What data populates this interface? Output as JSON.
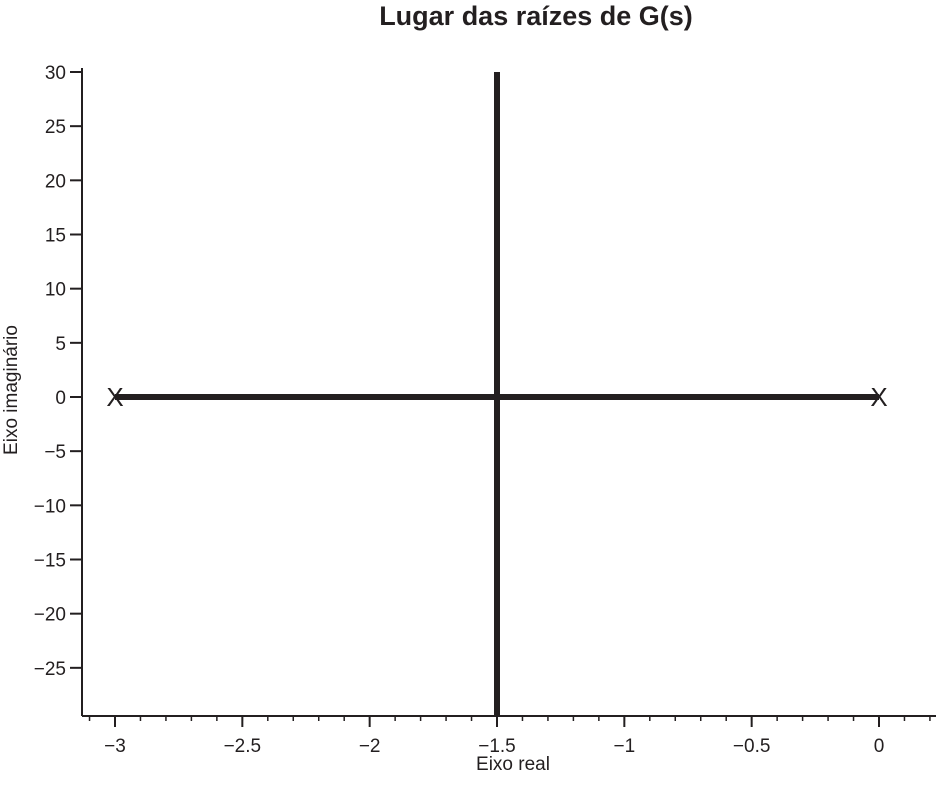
{
  "chart_data": {
    "type": "line",
    "title": "Lugar das raízes de G(s)",
    "xlabel": "Eixo real",
    "ylabel": "Eixo imaginário",
    "xlim": [
      -3.13,
      0.22
    ],
    "ylim": [
      -29.5,
      30.5
    ],
    "x_ticks": [
      {
        "value": -3,
        "label": "−3"
      },
      {
        "value": -2.5,
        "label": "−2.5"
      },
      {
        "value": -2,
        "label": "−2"
      },
      {
        "value": -1.5,
        "label": "−1.5"
      },
      {
        "value": -1,
        "label": "−1"
      },
      {
        "value": -0.5,
        "label": "−0.5"
      },
      {
        "value": 0,
        "label": "0"
      }
    ],
    "y_ticks": [
      {
        "value": 30,
        "label": "30"
      },
      {
        "value": 25,
        "label": "25"
      },
      {
        "value": 20,
        "label": "20"
      },
      {
        "value": 15,
        "label": "15"
      },
      {
        "value": 10,
        "label": "10"
      },
      {
        "value": 5,
        "label": "5"
      },
      {
        "value": 0,
        "label": "0"
      },
      {
        "value": -5,
        "label": "−5"
      },
      {
        "value": -10,
        "label": "−10"
      },
      {
        "value": -15,
        "label": "−15"
      },
      {
        "value": -20,
        "label": "−20"
      },
      {
        "value": -25,
        "label": "−25"
      }
    ],
    "series": [
      {
        "x": [
          -3,
          0
        ],
        "y": [
          0,
          0
        ]
      },
      {
        "x": [
          -1.5,
          -1.5
        ],
        "y": [
          30,
          -29.5
        ]
      }
    ],
    "poles": [
      {
        "x": -3,
        "y": 0,
        "marker": "X"
      },
      {
        "x": 0,
        "y": 0,
        "marker": "X"
      }
    ],
    "grid": false,
    "color": "#231f20"
  }
}
